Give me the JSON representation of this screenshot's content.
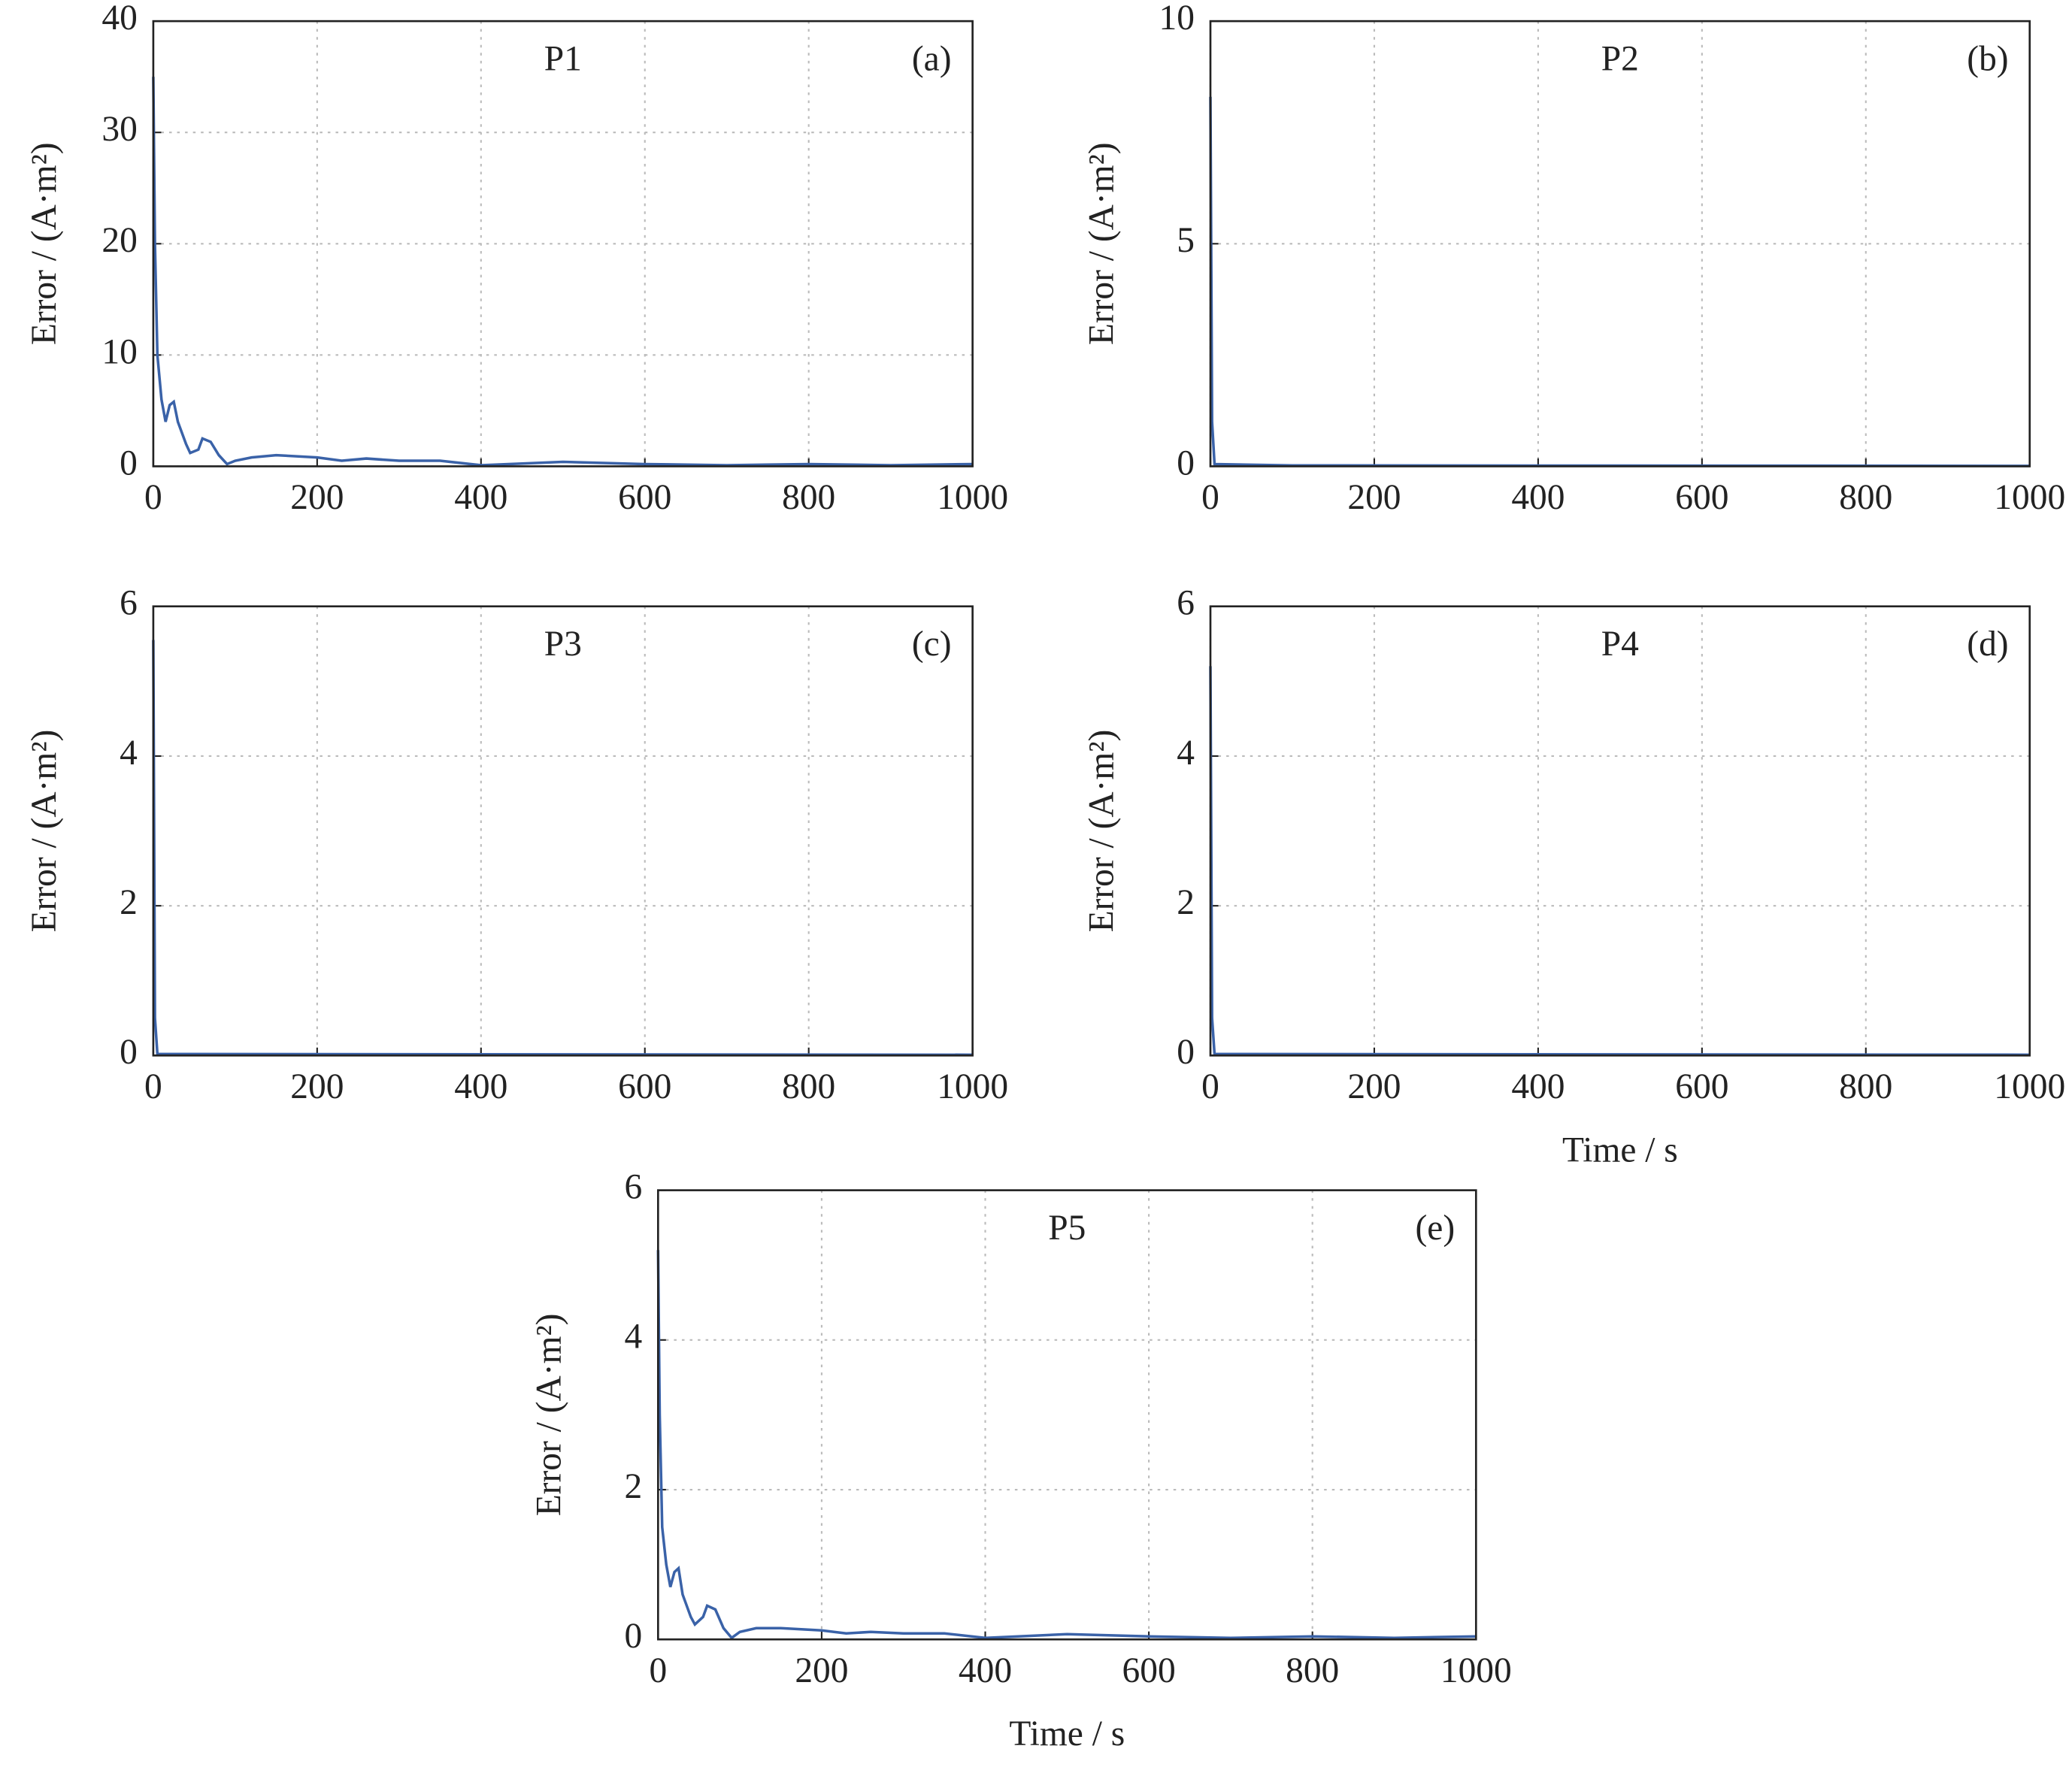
{
  "chart_data": [
    {
      "type": "line",
      "title": "P1",
      "panel": "(a)",
      "y_label": "Error / (A·m²)",
      "color": "#3a62a8",
      "xlim": [
        0,
        1000
      ],
      "xticks": [
        0,
        200,
        400,
        600,
        800,
        1000
      ],
      "ylim": [
        0,
        40
      ],
      "yticks": [
        0,
        10,
        20,
        30,
        40
      ],
      "grid": true,
      "x": [
        0,
        2,
        5,
        10,
        15,
        20,
        25,
        30,
        40,
        45,
        55,
        60,
        70,
        80,
        90,
        100,
        120,
        150,
        200,
        230,
        260,
        300,
        350,
        400,
        500,
        600,
        700,
        800,
        900,
        1000
      ],
      "values": [
        35,
        20,
        10,
        6,
        4,
        5.5,
        5.8,
        4,
        2,
        1.2,
        1.5,
        2.5,
        2.2,
        1,
        0.2,
        0.5,
        0.8,
        1,
        0.8,
        0.5,
        0.7,
        0.5,
        0.5,
        0.1,
        0.4,
        0.2,
        0.1,
        0.2,
        0.1,
        0.2
      ]
    },
    {
      "type": "line",
      "title": "P2",
      "panel": "(b)",
      "y_label": "Error / (A·m²)",
      "color": "#3a62a8",
      "xlim": [
        0,
        1000
      ],
      "xticks": [
        0,
        200,
        400,
        600,
        800,
        1000
      ],
      "ylim": [
        0,
        10
      ],
      "yticks": [
        0,
        5,
        10
      ],
      "grid": true,
      "x": [
        0,
        2,
        5,
        100,
        1000
      ],
      "values": [
        8.3,
        1,
        0.05,
        0.02,
        0.01
      ]
    },
    {
      "type": "line",
      "title": "P3",
      "panel": "(c)",
      "y_label": "Error / (A·m²)",
      "color": "#3a62a8",
      "xlim": [
        0,
        1000
      ],
      "xticks": [
        0,
        200,
        400,
        600,
        800,
        1000
      ],
      "ylim": [
        0,
        6
      ],
      "yticks": [
        0,
        2,
        4,
        6
      ],
      "grid": true,
      "x": [
        0,
        2,
        5,
        1000
      ],
      "values": [
        5.55,
        0.5,
        0.02,
        0.01
      ]
    },
    {
      "type": "line",
      "title": "P4",
      "panel": "(d)",
      "y_label": "Error / (A·m²)",
      "x_label": "Time / s",
      "color": "#3a62a8",
      "xlim": [
        0,
        1000
      ],
      "xticks": [
        0,
        200,
        400,
        600,
        800,
        1000
      ],
      "ylim": [
        0,
        6
      ],
      "yticks": [
        0,
        2,
        4,
        6
      ],
      "grid": true,
      "x": [
        0,
        2,
        5,
        1000
      ],
      "values": [
        5.2,
        0.5,
        0.02,
        0.01
      ]
    },
    {
      "type": "line",
      "title": "P5",
      "panel": "(e)",
      "y_label": "Error / (A·m²)",
      "x_label": "Time / s",
      "color": "#3a62a8",
      "xlim": [
        0,
        1000
      ],
      "xticks": [
        0,
        200,
        400,
        600,
        800,
        1000
      ],
      "ylim": [
        0,
        6
      ],
      "yticks": [
        0,
        2,
        4,
        6
      ],
      "grid": true,
      "x": [
        0,
        2,
        5,
        10,
        15,
        20,
        25,
        30,
        40,
        45,
        55,
        60,
        70,
        80,
        90,
        100,
        120,
        150,
        200,
        230,
        260,
        300,
        350,
        400,
        500,
        600,
        700,
        800,
        900,
        1000
      ],
      "values": [
        5.2,
        3,
        1.5,
        1,
        0.7,
        0.9,
        0.95,
        0.6,
        0.3,
        0.2,
        0.3,
        0.45,
        0.4,
        0.15,
        0.02,
        0.1,
        0.15,
        0.15,
        0.12,
        0.08,
        0.1,
        0.08,
        0.08,
        0.02,
        0.07,
        0.04,
        0.02,
        0.04,
        0.02,
        0.04
      ]
    }
  ]
}
